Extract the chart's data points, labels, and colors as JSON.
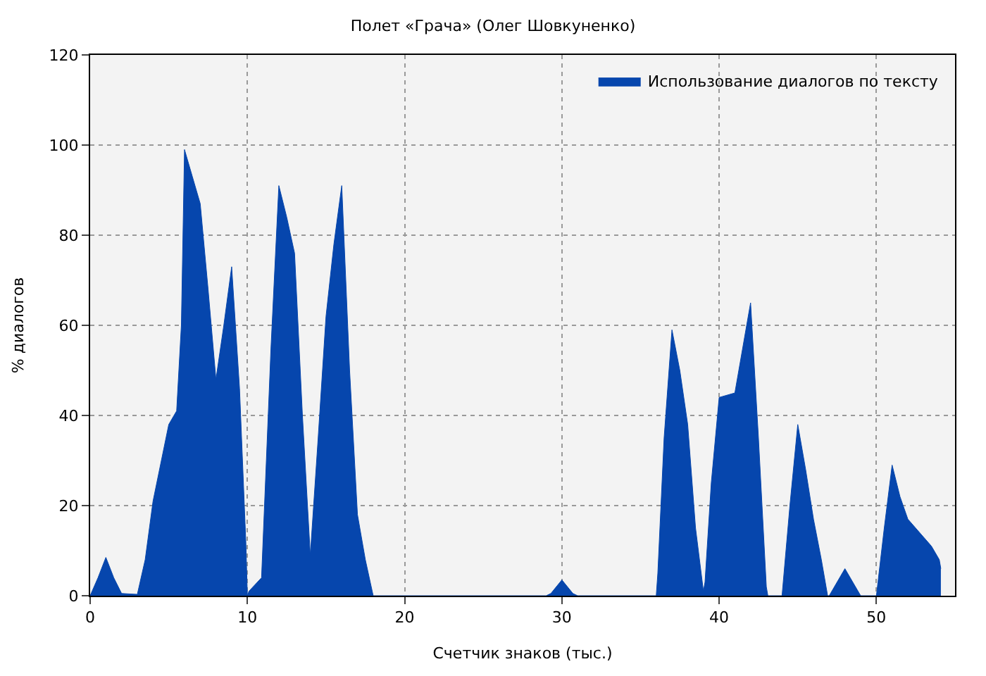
{
  "chart_data": {
    "type": "area",
    "title": "Полет «Грача» (Олег Шовкуненко)",
    "xlabel": "Счетчик знаков (тыс.)",
    "ylabel": "% диалогов",
    "series": [
      {
        "name": "Использование диалогов по тексту",
        "color": "#0646ad",
        "x": [
          0,
          0.5,
          1,
          1.5,
          2,
          3,
          3.5,
          4,
          5,
          5.5,
          5.8,
          6,
          6.5,
          7,
          7.5,
          8,
          8.5,
          9,
          9.5,
          9.9,
          10,
          10.1,
          10.9,
          11.5,
          12,
          12.5,
          13,
          13.5,
          14,
          14.5,
          15,
          15.5,
          16,
          16.5,
          17,
          17.5,
          18,
          29,
          29.3,
          30,
          30.7,
          31,
          36,
          36.1,
          36.5,
          37,
          37.5,
          38,
          38.5,
          39,
          39.1,
          39.5,
          40,
          41,
          41.5,
          42,
          42.5,
          43,
          43.1,
          44,
          44.5,
          45,
          45.5,
          46,
          46.5,
          46.9,
          47,
          48,
          49,
          50,
          50.1,
          50.5,
          51,
          51.5,
          52,
          52.5,
          53,
          53.5,
          54,
          54.1
        ],
        "values": [
          0,
          4,
          8.5,
          4,
          0.5,
          0.3,
          8,
          21,
          38,
          41,
          60,
          99,
          93,
          87,
          68,
          48,
          60,
          73,
          46,
          12,
          0,
          1,
          4,
          55,
          91,
          84,
          76,
          40,
          9,
          35,
          62,
          78,
          91,
          50,
          18,
          8,
          0,
          0,
          0.5,
          3.5,
          0.5,
          0,
          0,
          5,
          35,
          59,
          50,
          38,
          15,
          1,
          3,
          25,
          44,
          45,
          55,
          65,
          35,
          2,
          0,
          0,
          20,
          38,
          28,
          17,
          8,
          0,
          0,
          6,
          0,
          0,
          3,
          15,
          29,
          22,
          17,
          15,
          13,
          11,
          8,
          6
        ]
      }
    ],
    "xlim": [
      0,
      55
    ],
    "xticks": [
      0,
      10,
      20,
      30,
      40,
      50
    ],
    "ylim": [
      0,
      120
    ],
    "yticks": [
      0,
      20,
      40,
      60,
      80,
      100,
      120
    ],
    "grid": true,
    "legend": "top right"
  }
}
